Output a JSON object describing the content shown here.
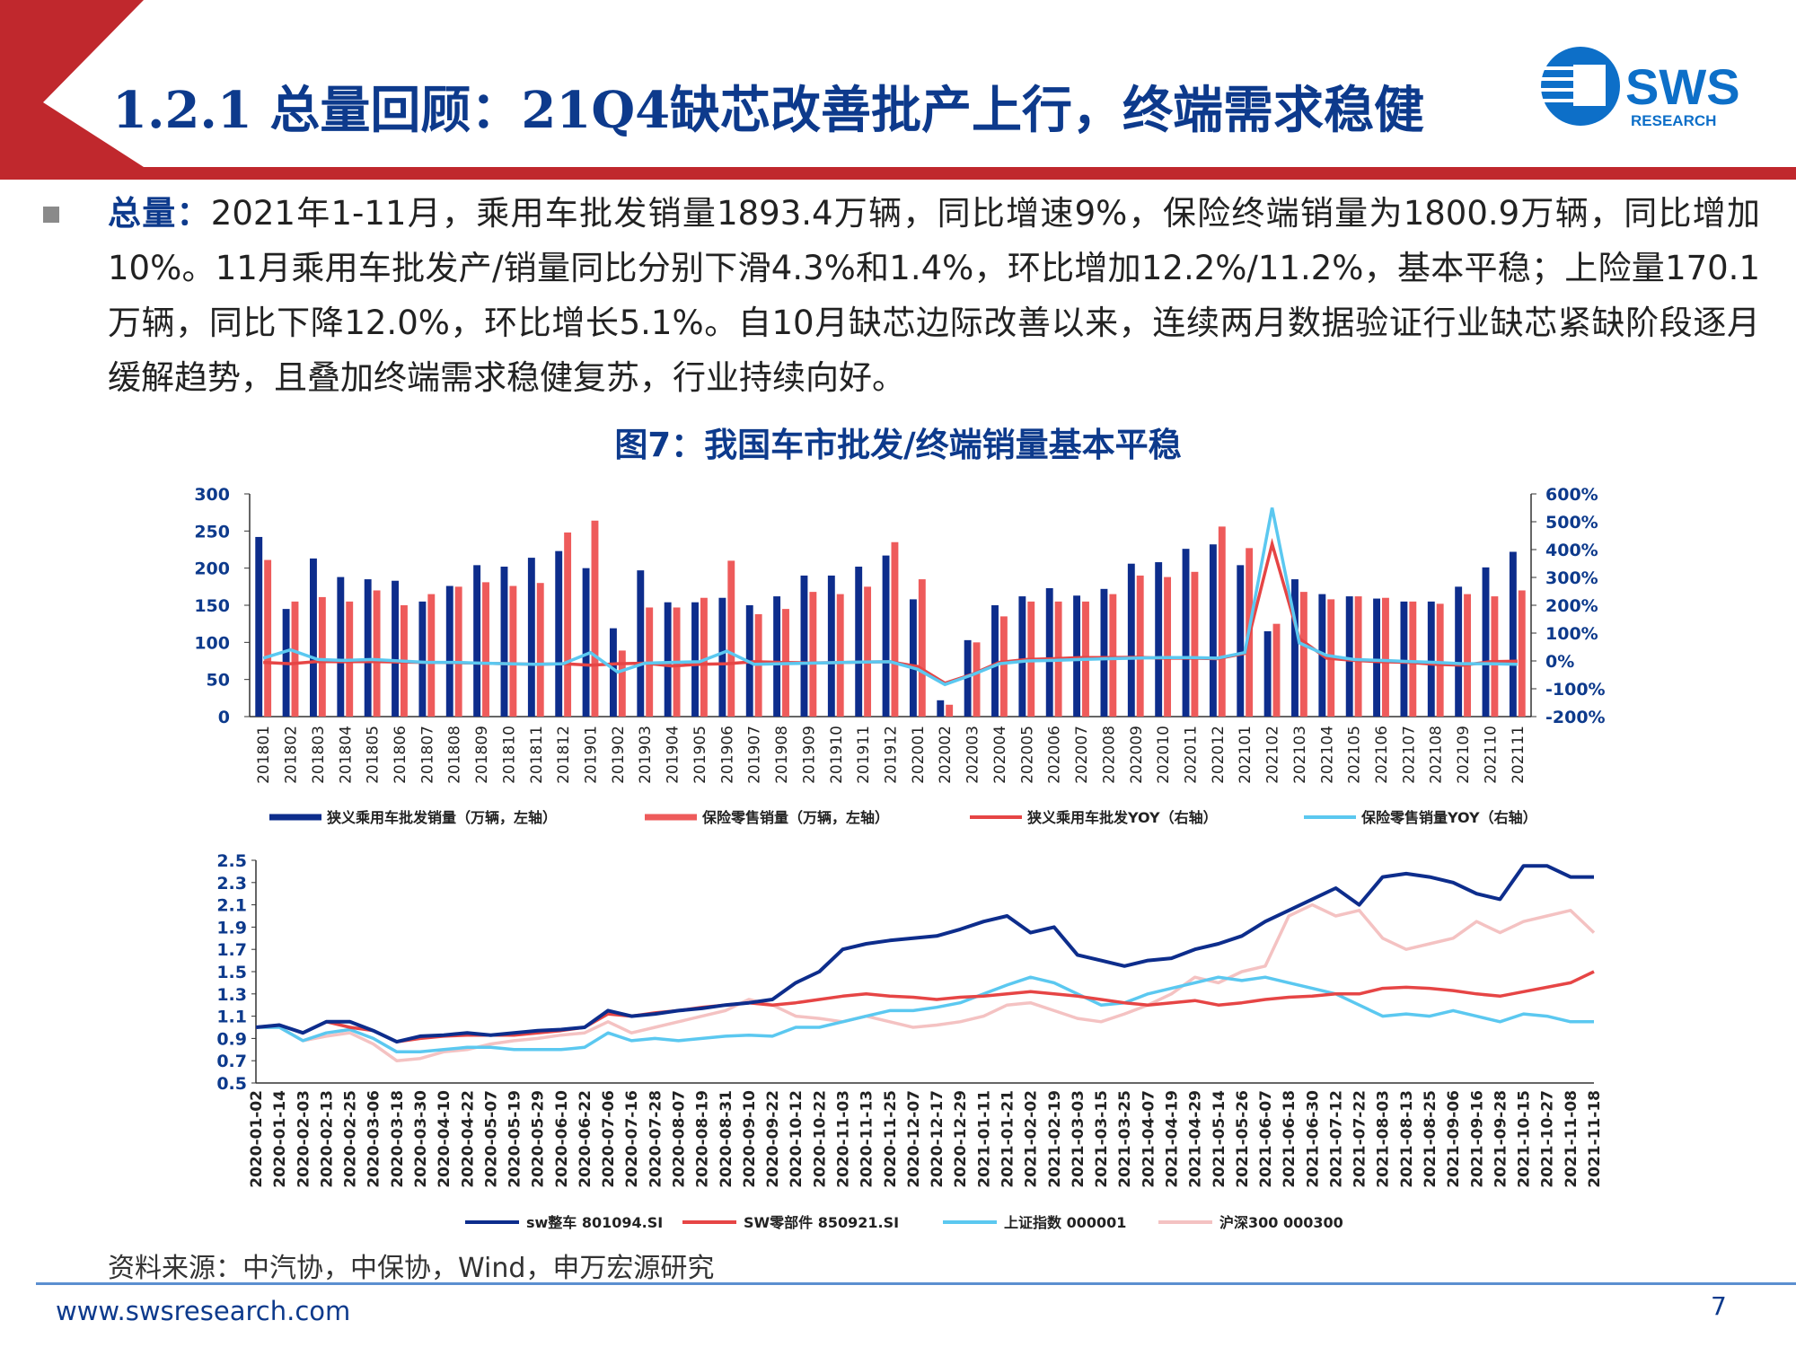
{
  "header": {
    "title": "1.2.1 总量回顾：21Q4缺芯改善批产上行，终端需求稳健",
    "logo_text": "SWS",
    "logo_subtext": "RESEARCH"
  },
  "body": {
    "label": "总量：",
    "text": "2021年1-11月，乘用车批发销量1893.4万辆，同比增速9%，保险终端销量为1800.9万辆，同比增加10%。11月乘用车批发产/销量同比分别下滑4.3%和1.4%，环比增加12.2%/11.2%，基本平稳；上险量170.1万辆，同比下降12.0%，环比增长5.1%。自10月缺芯边际改善以来，连续两月数据验证行业缺芯紧缺阶段逐月缓解趋势，且叠加终端需求稳健复苏，行业持续向好。"
  },
  "figure_title": "图7：我国车市批发/终端销量基本平稳",
  "source": "资料来源：中汽协，中保协，Wind，申万宏源研究",
  "footer": {
    "url": "www.swsresearch.com",
    "page": "7"
  },
  "colors": {
    "navy": "#0d3a8c",
    "brand_red": "#c0282d",
    "bar_red": "#ee5b5b",
    "light_blue": "#5bc8f0",
    "pink": "#f4c2c2"
  },
  "chart_data": [
    {
      "type": "bar",
      "categories": [
        "201801",
        "201802",
        "201803",
        "201804",
        "201805",
        "201806",
        "201807",
        "201808",
        "201809",
        "201810",
        "201811",
        "201812",
        "201901",
        "201902",
        "201903",
        "201904",
        "201905",
        "201906",
        "201907",
        "201908",
        "201909",
        "201910",
        "201911",
        "201912",
        "202001",
        "202002",
        "202003",
        "202004",
        "202005",
        "202006",
        "202007",
        "202008",
        "202009",
        "202010",
        "202011",
        "202012",
        "202101",
        "202102",
        "202103",
        "202104",
        "202105",
        "202106",
        "202107",
        "202108",
        "202109",
        "202110",
        "202111"
      ],
      "series": [
        {
          "name": "狭义乘用车批发销量（万辆，左轴）",
          "kind": "bar",
          "axis": "left",
          "color": "#0d2d8c",
          "values": [
            242,
            145,
            213,
            188,
            185,
            183,
            155,
            176,
            204,
            202,
            214,
            223,
            200,
            119,
            197,
            154,
            154,
            160,
            150,
            162,
            190,
            190,
            202,
            217,
            158,
            22,
            103,
            150,
            162,
            173,
            163,
            172,
            206,
            208,
            226,
            232,
            204,
            115,
            185,
            165,
            162,
            159,
            155,
            155,
            175,
            201,
            222
          ]
        },
        {
          "name": "保险零售销量（万辆，左轴）",
          "kind": "bar",
          "axis": "left",
          "color": "#ee5b5b",
          "values": [
            211,
            155,
            161,
            155,
            170,
            150,
            165,
            175,
            181,
            176,
            180,
            248,
            264,
            89,
            147,
            147,
            160,
            210,
            138,
            145,
            168,
            165,
            175,
            235,
            185,
            16,
            100,
            135,
            155,
            155,
            155,
            165,
            190,
            188,
            195,
            256,
            227,
            125,
            168,
            158,
            162,
            160,
            155,
            152,
            165,
            162,
            170
          ]
        },
        {
          "name": "狭义乘用车批发YOY（右轴）",
          "kind": "line",
          "axis": "right",
          "color": "#e64545",
          "values": [
            -0.05,
            -0.1,
            -0.02,
            -0.03,
            -0.02,
            -0.04,
            -0.05,
            -0.06,
            -0.08,
            -0.1,
            -0.12,
            -0.1,
            -0.15,
            -0.1,
            -0.08,
            -0.18,
            -0.12,
            -0.1,
            -0.03,
            -0.05,
            -0.07,
            -0.06,
            -0.04,
            -0.03,
            -0.2,
            -0.8,
            -0.48,
            -0.05,
            0.05,
            0.08,
            0.12,
            0.12,
            0.13,
            0.1,
            0.1,
            0.08,
            0.27,
            4.2,
            0.8,
            0.1,
            0.02,
            -0.03,
            -0.05,
            -0.12,
            -0.15,
            -0.03,
            -0.01
          ]
        },
        {
          "name": "保险零售销量YOY（右轴）",
          "kind": "line",
          "axis": "right",
          "color": "#5bc8f0",
          "values": [
            0.1,
            0.4,
            0.05,
            0.02,
            0.05,
            0.0,
            -0.05,
            -0.05,
            -0.08,
            -0.1,
            -0.12,
            -0.1,
            0.3,
            -0.4,
            -0.08,
            -0.05,
            -0.03,
            0.35,
            -0.12,
            -0.1,
            -0.08,
            -0.06,
            -0.04,
            -0.03,
            -0.3,
            -0.85,
            -0.5,
            -0.1,
            0.0,
            0.02,
            0.05,
            0.08,
            0.1,
            0.12,
            0.12,
            0.1,
            0.3,
            5.5,
            0.65,
            0.2,
            0.05,
            0.02,
            -0.02,
            -0.05,
            -0.1,
            -0.1,
            -0.12
          ]
        }
      ],
      "ylim_left": [
        0,
        300
      ],
      "yticks_left": [
        "300",
        "250",
        "200",
        "150",
        "100",
        "50",
        "0"
      ],
      "ylim_right": [
        -2,
        6
      ],
      "yticks_right": [
        "600%",
        "500%",
        "400%",
        "300%",
        "200%",
        "100%",
        "0%",
        "-100%",
        "-200%"
      ],
      "legend": [
        "狭义乘用车批发销量（万辆，左轴）",
        "保险零售销量（万辆，左轴）",
        "狭义乘用车批发YOY（右轴）",
        "保险零售销量YOY（右轴）"
      ],
      "legend_position": "bottom"
    },
    {
      "type": "line",
      "x_labels": [
        "2020-01-02",
        "2020-01-14",
        "2020-02-03",
        "2020-02-13",
        "2020-02-25",
        "2020-03-06",
        "2020-03-18",
        "2020-03-30",
        "2020-04-10",
        "2020-04-22",
        "2020-05-07",
        "2020-05-19",
        "2020-05-29",
        "2020-06-10",
        "2020-06-22",
        "2020-07-06",
        "2020-07-16",
        "2020-07-28",
        "2020-08-07",
        "2020-08-19",
        "2020-08-31",
        "2020-09-10",
        "2020-09-22",
        "2020-10-12",
        "2020-10-22",
        "2020-11-03",
        "2020-11-13",
        "2020-11-25",
        "2020-12-07",
        "2020-12-17",
        "2020-12-29",
        "2021-01-11",
        "2021-01-21",
        "2021-02-02",
        "2021-02-19",
        "2021-03-03",
        "2021-03-15",
        "2021-03-25",
        "2021-04-07",
        "2021-04-19",
        "2021-04-29",
        "2021-05-14",
        "2021-05-26",
        "2021-06-07",
        "2021-06-18",
        "2021-06-30",
        "2021-07-12",
        "2021-07-22",
        "2021-08-03",
        "2021-08-13",
        "2021-08-25",
        "2021-09-06",
        "2021-09-16",
        "2021-09-28",
        "2021-10-15",
        "2021-10-27",
        "2021-11-08",
        "2021-11-18"
      ],
      "ylim": [
        0.5,
        2.5
      ],
      "yticks": [
        "2.5",
        "2.3",
        "2.1",
        "1.9",
        "1.7",
        "1.5",
        "1.3",
        "1.1",
        "0.9",
        "0.7",
        "0.5"
      ],
      "series": [
        {
          "name": "sw整车 801094.SI",
          "color": "#0d2d8c",
          "values": [
            1.0,
            1.02,
            0.95,
            1.05,
            1.05,
            0.97,
            0.87,
            0.92,
            0.93,
            0.95,
            0.93,
            0.95,
            0.97,
            0.98,
            1.0,
            1.15,
            1.1,
            1.12,
            1.15,
            1.17,
            1.2,
            1.22,
            1.25,
            1.4,
            1.5,
            1.7,
            1.75,
            1.78,
            1.8,
            1.82,
            1.88,
            1.95,
            2.0,
            1.85,
            1.9,
            1.65,
            1.6,
            1.55,
            1.6,
            1.62,
            1.7,
            1.75,
            1.82,
            1.95,
            2.05,
            2.15,
            2.25,
            2.1,
            2.35,
            2.38,
            2.35,
            2.3,
            2.2,
            2.15,
            2.45,
            2.45,
            2.35,
            2.35
          ]
        },
        {
          "name": "SW零部件 850921.SI",
          "color": "#e64545",
          "values": [
            1.0,
            1.02,
            0.95,
            1.05,
            1.0,
            0.97,
            0.87,
            0.9,
            0.92,
            0.93,
            0.93,
            0.93,
            0.95,
            0.97,
            1.0,
            1.12,
            1.1,
            1.13,
            1.15,
            1.18,
            1.2,
            1.22,
            1.2,
            1.22,
            1.25,
            1.28,
            1.3,
            1.28,
            1.27,
            1.25,
            1.27,
            1.28,
            1.3,
            1.32,
            1.3,
            1.28,
            1.25,
            1.22,
            1.2,
            1.22,
            1.24,
            1.2,
            1.22,
            1.25,
            1.27,
            1.28,
            1.3,
            1.3,
            1.35,
            1.36,
            1.35,
            1.33,
            1.3,
            1.28,
            1.32,
            1.36,
            1.4,
            1.5
          ]
        },
        {
          "name": "上证指数 000001",
          "color": "#5bc8f0",
          "values": [
            1.0,
            1.0,
            0.88,
            0.95,
            0.98,
            0.9,
            0.78,
            0.78,
            0.8,
            0.82,
            0.82,
            0.8,
            0.8,
            0.8,
            0.82,
            0.95,
            0.88,
            0.9,
            0.88,
            0.9,
            0.92,
            0.93,
            0.92,
            1.0,
            1.0,
            1.05,
            1.1,
            1.15,
            1.15,
            1.18,
            1.22,
            1.3,
            1.38,
            1.45,
            1.4,
            1.3,
            1.2,
            1.22,
            1.3,
            1.35,
            1.4,
            1.45,
            1.42,
            1.45,
            1.4,
            1.35,
            1.3,
            1.2,
            1.1,
            1.12,
            1.1,
            1.15,
            1.1,
            1.05,
            1.12,
            1.1,
            1.05,
            1.05
          ]
        },
        {
          "name": "沪深300 000300",
          "color": "#f4c2c2",
          "values": [
            1.0,
            1.0,
            0.88,
            0.92,
            0.95,
            0.85,
            0.7,
            0.72,
            0.78,
            0.8,
            0.85,
            0.88,
            0.9,
            0.93,
            0.95,
            1.05,
            0.95,
            1.0,
            1.05,
            1.1,
            1.15,
            1.25,
            1.2,
            1.1,
            1.08,
            1.05,
            1.1,
            1.05,
            1.0,
            1.02,
            1.05,
            1.1,
            1.2,
            1.22,
            1.15,
            1.08,
            1.05,
            1.12,
            1.2,
            1.3,
            1.45,
            1.4,
            1.5,
            1.55,
            2.0,
            2.1,
            2.0,
            2.05,
            1.8,
            1.7,
            1.75,
            1.8,
            1.95,
            1.85,
            1.95,
            2.0,
            2.05,
            1.85
          ]
        }
      ],
      "legend": [
        "sw整车 801094.SI",
        "SW零部件 850921.SI",
        "上证指数 000001",
        "沪深300 000300"
      ],
      "legend_position": "bottom"
    }
  ]
}
